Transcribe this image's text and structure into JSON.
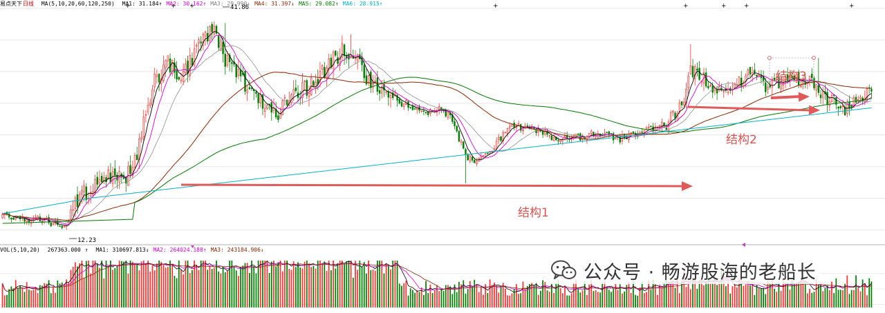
{
  "header": {
    "stock_name": "易点天下",
    "period": "日线",
    "ma_params": "MA(5,10,20,60,120,250)",
    "ma": [
      {
        "label": "MA1:",
        "value": "31.184",
        "dir": "↑",
        "color": "#000000"
      },
      {
        "label": "MA2:",
        "value": "30.162",
        "dir": "↑",
        "color": "#d400d4"
      },
      {
        "label": "MA3:",
        "value": "29.990",
        "dir": "↓",
        "color": "#808080"
      },
      {
        "label": "MA4:",
        "value": "31.397",
        "dir": "↓",
        "color": "#8b2500"
      },
      {
        "label": "MA5:",
        "value": "29.082",
        "dir": "↑",
        "color": "#007a00"
      },
      {
        "label": "MA6:",
        "value": "28.915",
        "dir": "↑",
        "color": "#00b4c8"
      }
    ]
  },
  "volume_header": {
    "params": "VOL(5,10,20)",
    "vol": "267363.000",
    "vol_dir": "↑",
    "ma": [
      {
        "label": "MA1:",
        "value": "310697.813",
        "dir": "↓",
        "color": "#000000"
      },
      {
        "label": "MA2:",
        "value": "264024.188",
        "dir": "↑",
        "color": "#d400d4"
      },
      {
        "label": "MA3:",
        "value": "243184.906",
        "dir": "↓",
        "color": "#8b2500"
      }
    ]
  },
  "price_labels": {
    "high": "41.86",
    "low": "12.23"
  },
  "annotations": [
    {
      "id": "structure1",
      "text": "结构1"
    },
    {
      "id": "structure2",
      "text": "结构2"
    },
    {
      "id": "structure3",
      "text": "结构3"
    }
  ],
  "watermark": {
    "text": "公众号 · 畅游股海的老船长",
    "icon": "wechat-icon"
  },
  "colors": {
    "up": "#ff3333",
    "down": "#008000",
    "arrow": "#e05a5a",
    "background": "#ffffff"
  },
  "chart_data": [
    {
      "type": "candlestick",
      "name": "price",
      "x": "trading days",
      "ylim": [
        10,
        44
      ],
      "grid": true,
      "high_label": 41.86,
      "low_label": 12.23,
      "anchors": [
        [
          0,
          13.8
        ],
        [
          18,
          13.4
        ],
        [
          28,
          12.4
        ],
        [
          35,
          16.5
        ],
        [
          45,
          19.5
        ],
        [
          55,
          19
        ],
        [
          62,
          24
        ],
        [
          68,
          33
        ],
        [
          75,
          36
        ],
        [
          82,
          34
        ],
        [
          88,
          38
        ],
        [
          95,
          41
        ],
        [
          102,
          36
        ],
        [
          108,
          34
        ],
        [
          112,
          31.5
        ],
        [
          118,
          30
        ],
        [
          125,
          29
        ],
        [
          132,
          31
        ],
        [
          140,
          33
        ],
        [
          148,
          36
        ],
        [
          155,
          38
        ],
        [
          160,
          37
        ],
        [
          166,
          33.5
        ],
        [
          172,
          32
        ],
        [
          178,
          30.5
        ],
        [
          185,
          30
        ],
        [
          192,
          28.5
        ],
        [
          198,
          29.5
        ],
        [
          204,
          28
        ],
        [
          210,
          22.5
        ],
        [
          216,
          21.8
        ],
        [
          224,
          24.5
        ],
        [
          232,
          27
        ],
        [
          240,
          26.5
        ],
        [
          248,
          25.5
        ],
        [
          256,
          25
        ],
        [
          264,
          25.5
        ],
        [
          272,
          26
        ],
        [
          280,
          25
        ],
        [
          288,
          26
        ],
        [
          296,
          27
        ],
        [
          302,
          27.5
        ],
        [
          308,
          30
        ],
        [
          312,
          35
        ],
        [
          318,
          34
        ],
        [
          324,
          32
        ],
        [
          332,
          33
        ],
        [
          340,
          34.5
        ],
        [
          346,
          32.5
        ],
        [
          352,
          33
        ],
        [
          358,
          33.5
        ],
        [
          364,
          34
        ],
        [
          370,
          32
        ],
        [
          376,
          30.5
        ],
        [
          382,
          29.5
        ],
        [
          388,
          31
        ],
        [
          394,
          32.5
        ]
      ],
      "moving_averages": [
        "MA5",
        "MA10",
        "MA20",
        "MA60",
        "MA120",
        "MA250"
      ]
    },
    {
      "type": "bar",
      "name": "volume",
      "series": [
        {
          "name": "VOL"
        },
        {
          "name": "MA5"
        },
        {
          "name": "MA10"
        },
        {
          "name": "MA20"
        }
      ]
    }
  ]
}
